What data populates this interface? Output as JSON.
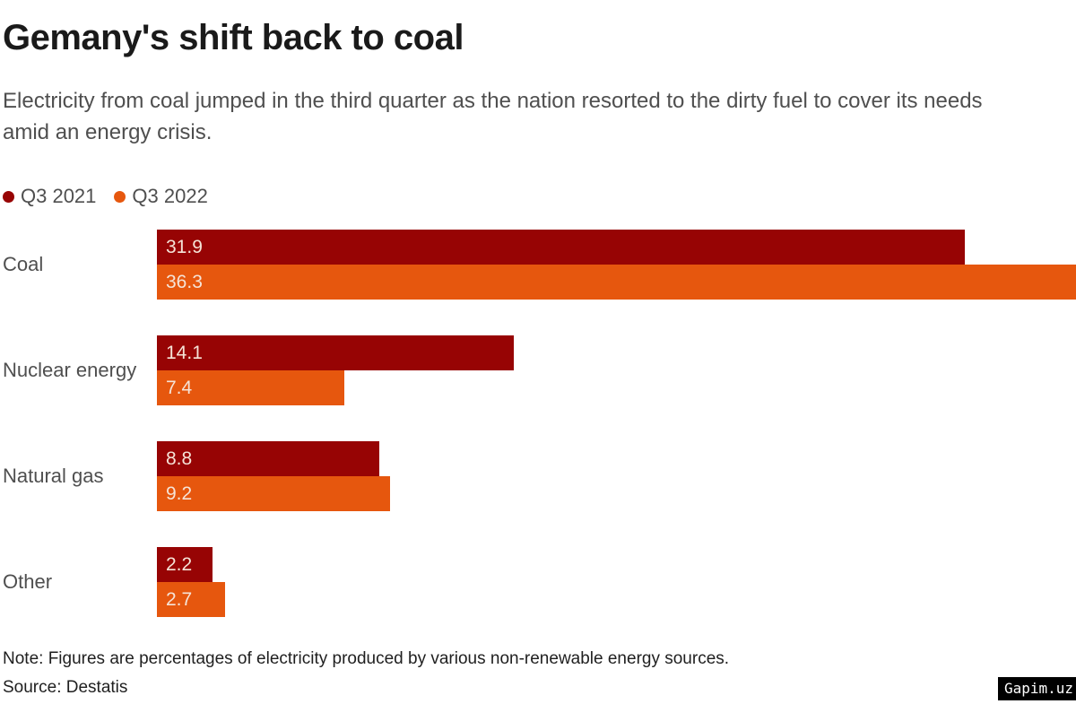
{
  "header": {
    "title": "Gemany's shift back to coal",
    "subtitle": "Electricity from coal jumped in the third quarter as the nation resorted to the dirty fuel to cover its needs amid an energy crisis."
  },
  "chart_data": {
    "type": "bar",
    "orientation": "horizontal",
    "title": "Gemany's shift back to coal",
    "categories": [
      "Coal",
      "Nuclear energy",
      "Natural gas",
      "Other"
    ],
    "series": [
      {
        "name": "Q3 2021",
        "color": "#970404",
        "values": [
          31.9,
          14.1,
          8.8,
          2.2
        ]
      },
      {
        "name": "Q3 2022",
        "color": "#E6570E",
        "values": [
          36.3,
          7.4,
          9.2,
          2.7
        ]
      }
    ],
    "xlim": [
      0,
      36.3
    ],
    "grid": false,
    "legend_position": "top-left",
    "value_labels": "inside-start",
    "units": "percent"
  },
  "footer": {
    "note": "Note: Figures are percentages of electricity produced by various non-renewable energy sources.",
    "source": "Source: Destatis",
    "watermark": "Gapim.uz"
  },
  "colors": {
    "q3_2021": "#970404",
    "q3_2022": "#E6570E",
    "title_text": "#1a1a1a",
    "body_text": "#4f4f4f",
    "value_label_text": "#f5e3d7",
    "watermark_bg": "#000000",
    "watermark_text": "#ffffff"
  }
}
